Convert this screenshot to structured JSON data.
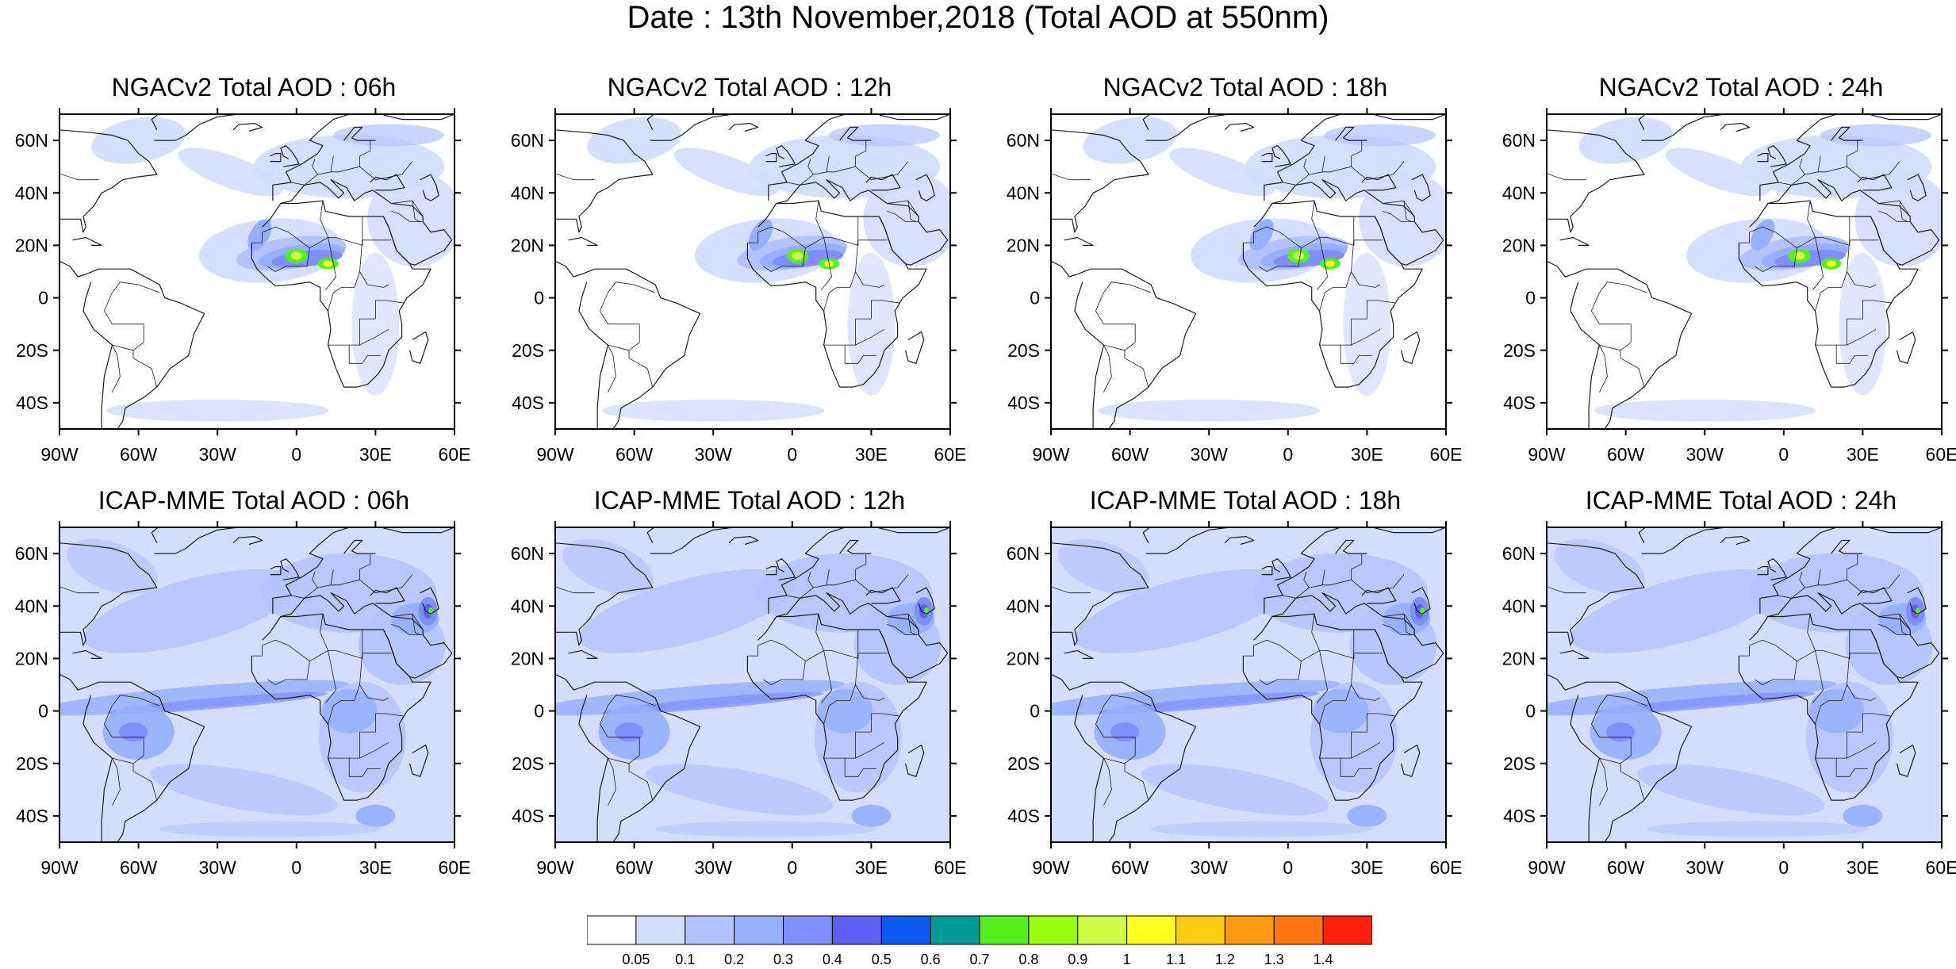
{
  "title": "Date : 13th November,2018 (Total AOD at 550nm)",
  "colors": {
    "land_outline": "#1a1a1a",
    "frame": "#000000",
    "background": "#ffffff"
  },
  "axes": {
    "lat_labels": [
      "60N",
      "40N",
      "20N",
      "0",
      "20S",
      "40S"
    ],
    "lat_values": [
      60,
      40,
      20,
      0,
      -20,
      -40
    ],
    "lon_labels": [
      "90W",
      "60W",
      "30W",
      "0",
      "30E",
      "60E"
    ],
    "lon_values": [
      -90,
      -60,
      -30,
      0,
      30,
      60
    ],
    "lat_range": [
      -50,
      70
    ],
    "lon_range": [
      -90,
      60
    ]
  },
  "panels": [
    {
      "title": "NGACv2 Total AOD : 06h",
      "model": "NGACv2",
      "hour": "06h"
    },
    {
      "title": "NGACv2 Total AOD : 12h",
      "model": "NGACv2",
      "hour": "12h"
    },
    {
      "title": "NGACv2 Total AOD : 18h",
      "model": "NGACv2",
      "hour": "18h"
    },
    {
      "title": "NGACv2 Total AOD : 24h",
      "model": "NGACv2",
      "hour": "24h"
    },
    {
      "title": "ICAP-MME Total AOD : 06h",
      "model": "ICAP-MME",
      "hour": "06h"
    },
    {
      "title": "ICAP-MME Total AOD : 12h",
      "model": "ICAP-MME",
      "hour": "12h"
    },
    {
      "title": "ICAP-MME Total AOD : 18h",
      "model": "ICAP-MME",
      "hour": "18h"
    },
    {
      "title": "ICAP-MME Total AOD : 24h",
      "model": "ICAP-MME",
      "hour": "24h"
    }
  ],
  "colorbar": {
    "labels": [
      "0.05",
      "0.1",
      "0.2",
      "0.3",
      "0.4",
      "0.5",
      "0.6",
      "0.7",
      "0.8",
      "0.9",
      "1",
      "1.1",
      "1.2",
      "1.3",
      "1.4"
    ],
    "colors": [
      "#ffffff",
      "#d5ddff",
      "#b3c3ff",
      "#96afff",
      "#7f8fff",
      "#5e60f5",
      "#0a5cf2",
      "#009999",
      "#55ee22",
      "#99ff11",
      "#ccff44",
      "#ffff22",
      "#ffcc11",
      "#ff9911",
      "#ff7711",
      "#ff2211"
    ]
  }
}
